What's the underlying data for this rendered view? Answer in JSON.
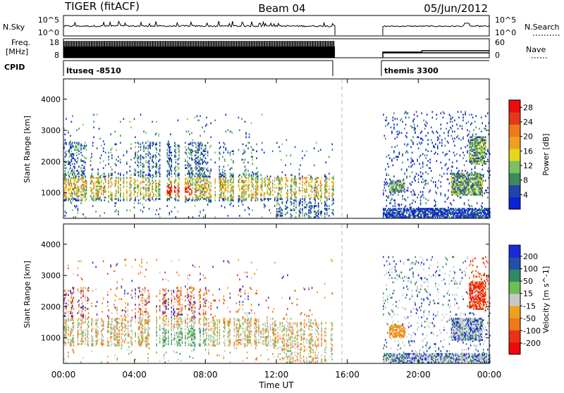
{
  "header": {
    "radar": "TIGER (fitACF)",
    "beam": "Beam 04",
    "date": "05/Jun/2012"
  },
  "noise_panel": {
    "left_label": "N.Sky",
    "right_label": "N.Search",
    "left_ticks": [
      "10^5",
      "10^0"
    ],
    "right_ticks": [
      "10^5",
      "10^0"
    ]
  },
  "freq_panel": {
    "left_label_line1": "Freq.",
    "left_label_line2": "[MHz]",
    "left_ticks": [
      "18",
      "8"
    ],
    "right_ticks": [
      "60",
      "0"
    ],
    "right_label": "Nave"
  },
  "cpid_panel": {
    "label": "CPID",
    "segments": [
      {
        "name": "ltuseq -8510",
        "start": 0,
        "end": 15.3
      },
      {
        "name": "themis 3300",
        "start": 18.0,
        "end": 24.0
      }
    ]
  },
  "chart_data": [
    {
      "type": "heatmap",
      "title": "",
      "xlabel": "Time UT",
      "ylabel": "Slant Range [km]",
      "xlim": [
        0,
        24
      ],
      "ylim": [
        180,
        4650
      ],
      "x_ticks": [
        "00:00",
        "04:00",
        "08:00",
        "12:00",
        "16:00",
        "20:00",
        "00:00"
      ],
      "y_ticks": [
        1000,
        2000,
        3000,
        4000
      ],
      "colorbar_label": "Power [dB]",
      "colorbar_ticks": [
        4,
        8,
        12,
        16,
        20,
        24,
        28
      ],
      "crange": [
        0,
        30
      ],
      "colors": [
        "#0a22d8",
        "#2244aa",
        "#3a8a60",
        "#7ac060",
        "#e6d61a",
        "#f0a020",
        "#f07a18",
        "#e23a18",
        "#ee0c0c"
      ],
      "data_gap_x": [
        15.3,
        18.0
      ],
      "scan_boundary_x": 15.3
    },
    {
      "type": "heatmap",
      "title": "",
      "xlabel": "Time UT",
      "ylabel": "Slant Range [km]",
      "xlim": [
        0,
        24
      ],
      "ylim": [
        180,
        4650
      ],
      "x_ticks": [
        "00:00",
        "04:00",
        "08:00",
        "12:00",
        "16:00",
        "20:00",
        "00:00"
      ],
      "y_ticks": [
        1000,
        2000,
        3000,
        4000
      ],
      "colorbar_label": "Velocity [m s^-1]",
      "colorbar_ticks": [
        200,
        100,
        50,
        15,
        -15,
        -50,
        -100,
        -200
      ],
      "crange": [
        -250,
        250
      ],
      "colors": [
        "#1a2ad8",
        "#2250a8",
        "#2e8a66",
        "#6ac050",
        "#c8c8c8",
        "#f0a020",
        "#f07818",
        "#ec3216",
        "#ee0a0a"
      ],
      "data_gap_x": [
        15.3,
        18.0
      ],
      "scan_boundary_x": 15.3
    }
  ]
}
